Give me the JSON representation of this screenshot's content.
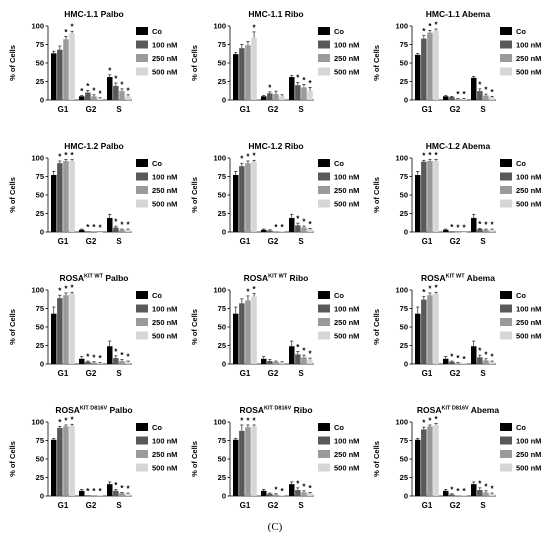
{
  "figure": {
    "caption": "(C)"
  },
  "colors": {
    "series": [
      "#000000",
      "#595959",
      "#9a9a9a",
      "#d6d6d6"
    ],
    "axis": "#000000",
    "star": "#000000"
  },
  "chart_data": [
    {
      "type": "bar",
      "panel": "HMC-1.1 Palbo",
      "title": "HMC-1.1 Palbo",
      "categories": [
        "G1",
        "G2",
        "S"
      ],
      "ylabel": "% of Cells",
      "ylim": [
        0,
        100
      ],
      "yticks": [
        0,
        25,
        50,
        75,
        100
      ],
      "series": [
        {
          "name": "Co",
          "values": [
            63,
            5,
            31
          ],
          "errors": [
            3,
            1,
            3
          ]
        },
        {
          "name": "100 nM",
          "values": [
            68,
            10,
            19
          ],
          "errors": [
            5,
            3,
            4
          ]
        },
        {
          "name": "250 nM",
          "values": [
            82,
            5,
            12
          ],
          "errors": [
            4,
            2,
            3
          ]
        },
        {
          "name": "500 nM",
          "values": [
            90,
            2,
            5
          ],
          "errors": [
            3,
            1,
            2
          ]
        }
      ],
      "significance": [
        [
          false,
          true,
          true
        ],
        [
          false,
          true,
          true
        ],
        [
          true,
          true,
          true
        ],
        [
          true,
          true,
          true
        ]
      ],
      "legend_position": "right"
    },
    {
      "type": "bar",
      "panel": "HMC-1.1 Ribo",
      "title": "HMC-1.1 Ribo",
      "categories": [
        "G1",
        "G2",
        "S"
      ],
      "ylabel": "% of Cells",
      "ylim": [
        0,
        100
      ],
      "yticks": [
        0,
        25,
        50,
        75,
        100
      ],
      "series": [
        {
          "name": "Co",
          "values": [
            62,
            5,
            31
          ],
          "errors": [
            2,
            1,
            2
          ]
        },
        {
          "name": "100 nM",
          "values": [
            70,
            9,
            20
          ],
          "errors": [
            5,
            2,
            4
          ]
        },
        {
          "name": "250 nM",
          "values": [
            74,
            8,
            17
          ],
          "errors": [
            5,
            4,
            4
          ]
        },
        {
          "name": "500 nM",
          "values": [
            84,
            5,
            12
          ],
          "errors": [
            8,
            2,
            5
          ]
        }
      ],
      "significance": [
        [
          false,
          false,
          false
        ],
        [
          false,
          true,
          true
        ],
        [
          false,
          false,
          true
        ],
        [
          true,
          false,
          true
        ]
      ],
      "legend_position": "right"
    },
    {
      "type": "bar",
      "panel": "HMC-1.1 Abema",
      "title": "HMC-1.1 Abema",
      "categories": [
        "G1",
        "G2",
        "S"
      ],
      "ylabel": "% of Cells",
      "ylim": [
        0,
        100
      ],
      "yticks": [
        0,
        25,
        50,
        75,
        100
      ],
      "series": [
        {
          "name": "Co",
          "values": [
            61,
            5,
            30
          ],
          "errors": [
            2,
            1,
            2
          ]
        },
        {
          "name": "100 nM",
          "values": [
            83,
            4,
            12
          ],
          "errors": [
            4,
            1,
            3
          ]
        },
        {
          "name": "250 nM",
          "values": [
            91,
            1,
            6
          ],
          "errors": [
            3,
            1,
            2
          ]
        },
        {
          "name": "500 nM",
          "values": [
            94,
            1,
            4
          ],
          "errors": [
            2,
            1,
            1
          ]
        }
      ],
      "significance": [
        [
          false,
          false,
          false
        ],
        [
          true,
          false,
          true
        ],
        [
          true,
          true,
          true
        ],
        [
          true,
          true,
          true
        ]
      ],
      "legend_position": "right"
    },
    {
      "type": "bar",
      "panel": "HMC-1.2 Palbo",
      "title": "HMC-1.2 Palbo",
      "categories": [
        "G1",
        "G2",
        "S"
      ],
      "ylabel": "% of Cells",
      "ylim": [
        0,
        100
      ],
      "yticks": [
        0,
        25,
        50,
        75,
        100
      ],
      "series": [
        {
          "name": "Co",
          "values": [
            77,
            3,
            19
          ],
          "errors": [
            5,
            1,
            5
          ]
        },
        {
          "name": "100 nM",
          "values": [
            93,
            1,
            6
          ],
          "errors": [
            3,
            0,
            2
          ]
        },
        {
          "name": "250 nM",
          "values": [
            96,
            1,
            3
          ],
          "errors": [
            2,
            0,
            1
          ]
        },
        {
          "name": "500 nM",
          "values": [
            96,
            0,
            3
          ],
          "errors": [
            2,
            0,
            1
          ]
        }
      ],
      "significance": [
        [
          false,
          false,
          false
        ],
        [
          true,
          true,
          true
        ],
        [
          true,
          true,
          true
        ],
        [
          true,
          true,
          true
        ]
      ],
      "legend_position": "right"
    },
    {
      "type": "bar",
      "panel": "HMC-1.2 Ribo",
      "title": "HMC-1.2 Ribo",
      "categories": [
        "G1",
        "G2",
        "S"
      ],
      "ylabel": "% of Cells",
      "ylim": [
        0,
        100
      ],
      "yticks": [
        0,
        25,
        50,
        75,
        100
      ],
      "series": [
        {
          "name": "Co",
          "values": [
            77,
            3,
            19
          ],
          "errors": [
            5,
            1,
            5
          ]
        },
        {
          "name": "100 nM",
          "values": [
            89,
            2,
            9
          ],
          "errors": [
            4,
            1,
            3
          ]
        },
        {
          "name": "250 nM",
          "values": [
            93,
            1,
            6
          ],
          "errors": [
            3,
            0,
            2
          ]
        },
        {
          "name": "500 nM",
          "values": [
            95,
            1,
            4
          ],
          "errors": [
            2,
            0,
            1
          ]
        }
      ],
      "significance": [
        [
          false,
          false,
          false
        ],
        [
          true,
          false,
          true
        ],
        [
          true,
          true,
          true
        ],
        [
          true,
          true,
          true
        ]
      ],
      "legend_position": "right"
    },
    {
      "type": "bar",
      "panel": "HMC-1.2 Abema",
      "title": "HMC-1.2 Abema",
      "categories": [
        "G1",
        "G2",
        "S"
      ],
      "ylabel": "% of Cells",
      "ylim": [
        0,
        100
      ],
      "yticks": [
        0,
        25,
        50,
        75,
        100
      ],
      "series": [
        {
          "name": "Co",
          "values": [
            77,
            3,
            19
          ],
          "errors": [
            5,
            1,
            5
          ]
        },
        {
          "name": "100 nM",
          "values": [
            95,
            1,
            4
          ],
          "errors": [
            2,
            0,
            1
          ]
        },
        {
          "name": "250 nM",
          "values": [
            96,
            0,
            3
          ],
          "errors": [
            2,
            0,
            1
          ]
        },
        {
          "name": "500 nM",
          "values": [
            96,
            0,
            3
          ],
          "errors": [
            2,
            0,
            1
          ]
        }
      ],
      "significance": [
        [
          false,
          false,
          false
        ],
        [
          true,
          true,
          true
        ],
        [
          true,
          true,
          true
        ],
        [
          true,
          true,
          true
        ]
      ],
      "legend_position": "right"
    },
    {
      "type": "bar",
      "panel": "ROSA KIT WT Palbo",
      "title_parts": {
        "base": "ROSA",
        "sup": "KIT WT",
        "suffix": " Palbo"
      },
      "categories": [
        "G1",
        "G2",
        "S"
      ],
      "ylabel": "% of Cells",
      "ylim": [
        0,
        100
      ],
      "yticks": [
        0,
        25,
        50,
        75,
        100
      ],
      "series": [
        {
          "name": "Co",
          "values": [
            68,
            7,
            24
          ],
          "errors": [
            9,
            3,
            7
          ]
        },
        {
          "name": "100 nM",
          "values": [
            89,
            3,
            8
          ],
          "errors": [
            4,
            1,
            3
          ]
        },
        {
          "name": "250 nM",
          "values": [
            93,
            2,
            4
          ],
          "errors": [
            3,
            1,
            2
          ]
        },
        {
          "name": "500 nM",
          "values": [
            95,
            1,
            3
          ],
          "errors": [
            2,
            1,
            1
          ]
        }
      ],
      "significance": [
        [
          false,
          false,
          false
        ],
        [
          true,
          true,
          true
        ],
        [
          true,
          true,
          true
        ],
        [
          true,
          true,
          true
        ]
      ],
      "legend_position": "right"
    },
    {
      "type": "bar",
      "panel": "ROSA KIT WT Ribo",
      "title_parts": {
        "base": "ROSA",
        "sup": "KIT WT",
        "suffix": " Ribo"
      },
      "categories": [
        "G1",
        "G2",
        "S"
      ],
      "ylabel": "% of Cells",
      "ylim": [
        0,
        100
      ],
      "yticks": [
        0,
        25,
        50,
        75,
        100
      ],
      "series": [
        {
          "name": "Co",
          "values": [
            68,
            7,
            24
          ],
          "errors": [
            9,
            3,
            7
          ]
        },
        {
          "name": "100 nM",
          "values": [
            82,
            4,
            13
          ],
          "errors": [
            6,
            2,
            4
          ]
        },
        {
          "name": "250 nM",
          "values": [
            86,
            3,
            9
          ],
          "errors": [
            6,
            1,
            3
          ]
        },
        {
          "name": "500 nM",
          "values": [
            91,
            2,
            6
          ],
          "errors": [
            4,
            1,
            2
          ]
        }
      ],
      "significance": [
        [
          false,
          false,
          false
        ],
        [
          false,
          false,
          true
        ],
        [
          true,
          false,
          true
        ],
        [
          true,
          false,
          true
        ]
      ],
      "legend_position": "right"
    },
    {
      "type": "bar",
      "panel": "ROSA KIT WT Abema",
      "title_parts": {
        "base": "ROSA",
        "sup": "KIT WT",
        "suffix": " Abema"
      },
      "categories": [
        "G1",
        "G2",
        "S"
      ],
      "ylabel": "% of Cells",
      "ylim": [
        0,
        100
      ],
      "yticks": [
        0,
        25,
        50,
        75,
        100
      ],
      "series": [
        {
          "name": "Co",
          "values": [
            68,
            7,
            24
          ],
          "errors": [
            9,
            3,
            7
          ]
        },
        {
          "name": "100 nM",
          "values": [
            87,
            3,
            9
          ],
          "errors": [
            4,
            1,
            3
          ]
        },
        {
          "name": "250 nM",
          "values": [
            93,
            1,
            5
          ],
          "errors": [
            3,
            1,
            2
          ]
        },
        {
          "name": "500 nM",
          "values": [
            95,
            1,
            3
          ],
          "errors": [
            2,
            0,
            1
          ]
        }
      ],
      "significance": [
        [
          false,
          false,
          false
        ],
        [
          true,
          true,
          true
        ],
        [
          true,
          true,
          true
        ],
        [
          true,
          true,
          true
        ]
      ],
      "legend_position": "right"
    },
    {
      "type": "bar",
      "panel": "ROSA KIT D816V Palbo",
      "title_parts": {
        "base": "ROSA",
        "sup": "KIT D816V",
        "suffix": " Palbo"
      },
      "categories": [
        "G1",
        "G2",
        "S"
      ],
      "ylabel": "% of Cells",
      "ylim": [
        0,
        100
      ],
      "yticks": [
        0,
        25,
        50,
        75,
        100
      ],
      "series": [
        {
          "name": "Co",
          "values": [
            76,
            7,
            16
          ],
          "errors": [
            2,
            2,
            3
          ]
        },
        {
          "name": "100 nM",
          "values": [
            92,
            1,
            7
          ],
          "errors": [
            2,
            0,
            2
          ]
        },
        {
          "name": "250 nM",
          "values": [
            94,
            1,
            4
          ],
          "errors": [
            2,
            0,
            1
          ]
        },
        {
          "name": "500 nM",
          "values": [
            95,
            1,
            3
          ],
          "errors": [
            2,
            0,
            1
          ]
        }
      ],
      "significance": [
        [
          false,
          false,
          false
        ],
        [
          true,
          true,
          true
        ],
        [
          true,
          true,
          true
        ],
        [
          true,
          true,
          true
        ]
      ],
      "legend_position": "right"
    },
    {
      "type": "bar",
      "panel": "ROSA KIT D816V Ribo",
      "title_parts": {
        "base": "ROSA",
        "sup": "KIT D816V",
        "suffix": " Ribo"
      },
      "categories": [
        "G1",
        "G2",
        "S"
      ],
      "ylabel": "% of Cells",
      "ylim": [
        0,
        100
      ],
      "yticks": [
        0,
        25,
        50,
        75,
        100
      ],
      "series": [
        {
          "name": "Co",
          "values": [
            76,
            7,
            16
          ],
          "errors": [
            2,
            2,
            3
          ]
        },
        {
          "name": "100 nM",
          "values": [
            88,
            3,
            8
          ],
          "errors": [
            8,
            1,
            3
          ]
        },
        {
          "name": "250 nM",
          "values": [
            93,
            2,
            5
          ],
          "errors": [
            3,
            1,
            2
          ]
        },
        {
          "name": "500 nM",
          "values": [
            94,
            1,
            4
          ],
          "errors": [
            2,
            0,
            1
          ]
        }
      ],
      "significance": [
        [
          false,
          false,
          false
        ],
        [
          true,
          false,
          true
        ],
        [
          true,
          true,
          true
        ],
        [
          true,
          true,
          true
        ]
      ],
      "legend_position": "right"
    },
    {
      "type": "bar",
      "panel": "ROSA KIT D816V Abema",
      "title_parts": {
        "base": "ROSA",
        "sup": "KIT D816V",
        "suffix": " Abema"
      },
      "categories": [
        "G1",
        "G2",
        "S"
      ],
      "ylabel": "% of Cells",
      "ylim": [
        0,
        100
      ],
      "yticks": [
        0,
        25,
        50,
        75,
        100
      ],
      "series": [
        {
          "name": "Co",
          "values": [
            76,
            7,
            16
          ],
          "errors": [
            2,
            2,
            3
          ]
        },
        {
          "name": "100 nM",
          "values": [
            90,
            2,
            8
          ],
          "errors": [
            3,
            1,
            3
          ]
        },
        {
          "name": "250 nM",
          "values": [
            94,
            1,
            5
          ],
          "errors": [
            2,
            0,
            2
          ]
        },
        {
          "name": "500 nM",
          "values": [
            96,
            1,
            3
          ],
          "errors": [
            2,
            0,
            1
          ]
        }
      ],
      "significance": [
        [
          false,
          false,
          false
        ],
        [
          true,
          true,
          true
        ],
        [
          true,
          true,
          true
        ],
        [
          true,
          true,
          true
        ]
      ],
      "legend_position": "right"
    }
  ]
}
